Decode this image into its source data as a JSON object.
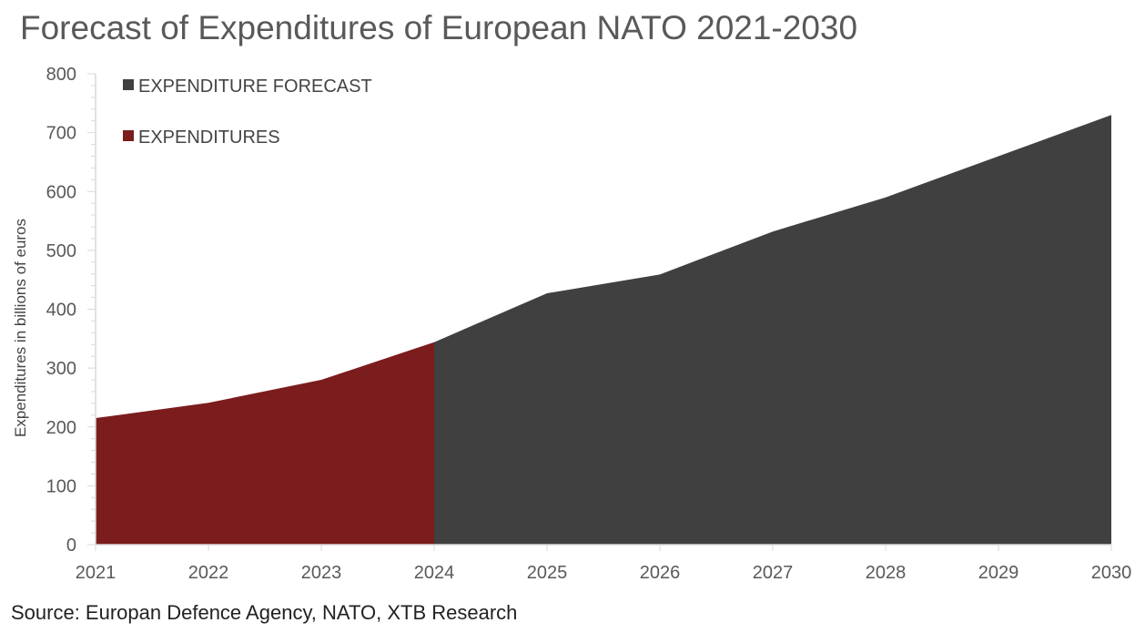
{
  "chart_data": {
    "type": "area",
    "title": "Forecast of Expenditures of European NATO 2021-2030",
    "xlabel": "",
    "ylabel": "Expenditures in billions of euros",
    "ylim": [
      0,
      800
    ],
    "yticks": [
      "0",
      "100",
      "200",
      "300",
      "400",
      "500",
      "600",
      "700",
      "800"
    ],
    "categories": [
      "2021",
      "2022",
      "2023",
      "2024",
      "2025",
      "2026",
      "2027",
      "2028",
      "2029",
      "2030"
    ],
    "series": [
      {
        "name": "EXPENDITURE FORECAST",
        "color": "#404040",
        "x": [
          "2024",
          "2025",
          "2026",
          "2027",
          "2028",
          "2029",
          "2030"
        ],
        "values": [
          344,
          427,
          459,
          532,
          590,
          660,
          730
        ]
      },
      {
        "name": "EXPENDITURES",
        "color": "#7b1c1d",
        "x": [
          "2021",
          "2022",
          "2023",
          "2024"
        ],
        "values": [
          215,
          241,
          280,
          344
        ]
      }
    ],
    "grid": false,
    "legend_placement": "top-left"
  },
  "source": "Source: Europan Defence Agency, NATO, XTB Research"
}
